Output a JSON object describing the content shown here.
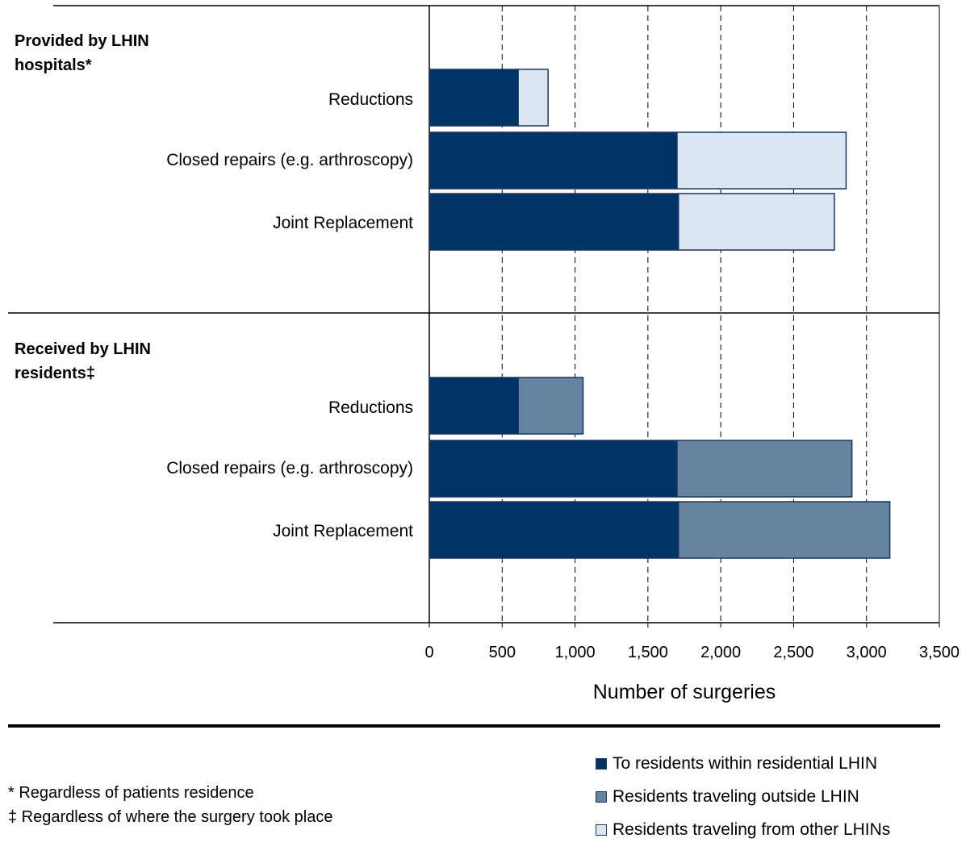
{
  "chart_data": {
    "type": "bar",
    "orientation": "horizontal",
    "stacked": true,
    "xlabel": "Number of surgeries",
    "xlim": [
      0,
      3500
    ],
    "xticks": [
      "0",
      "500",
      "1,000",
      "1,500",
      "2,000",
      "2,500",
      "3,000",
      "3,500"
    ],
    "grid": "vertical dashed",
    "groups": [
      {
        "title": "Provided by LHIN hospitals*",
        "title_lines": [
          "Provided by LHIN",
          "hospitals*"
        ],
        "categories": [
          "Reductions",
          "Closed repairs (e.g. arthroscopy)",
          "Joint Replacement"
        ],
        "series": [
          {
            "name": "To residents within residential LHIN",
            "values": [
              610,
              1700,
              1710
            ]
          },
          {
            "name": "Residents traveling from other LHINs",
            "values": [
              205,
              1160,
              1070
            ]
          }
        ]
      },
      {
        "title": "Received by LHIN residents‡",
        "title_lines": [
          "Received by LHIN",
          "residents‡"
        ],
        "categories": [
          "Reductions",
          "Closed repairs (e.g. arthroscopy)",
          "Joint Replacement"
        ],
        "series": [
          {
            "name": "To residents within residential LHIN",
            "values": [
              610,
              1700,
              1710
            ]
          },
          {
            "name": "Residents traveling outside LHIN",
            "values": [
              445,
              1200,
              1450
            ]
          }
        ]
      }
    ],
    "legend_position": "bottom-right"
  },
  "legend": [
    {
      "label": "To residents within residential LHIN",
      "color": "#003366"
    },
    {
      "label": "Residents traveling outside LHIN",
      "color": "#64849f"
    },
    {
      "label": "Residents traveling from other LHINs",
      "color": "#dce6f2"
    }
  ],
  "colors": {
    "To residents within residential LHIN": "#003366",
    "Residents traveling outside LHIN": "#64849f",
    "Residents traveling from other LHINs": "#dce6f2"
  },
  "footnotes": {
    "asterisk": "* Regardless of patients residence",
    "dagger": "‡ Regardless of where the surgery took place"
  }
}
